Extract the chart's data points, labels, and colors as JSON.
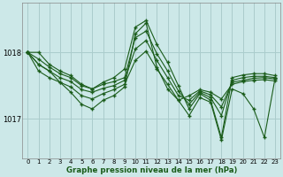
{
  "background_color": "#cce8e8",
  "grid_color": "#aacccc",
  "line_color": "#1a5c1a",
  "title": "Graphe pression niveau de la mer (hPa)",
  "ylim": [
    1016.4,
    1018.75
  ],
  "xlim": [
    -0.5,
    23.5
  ],
  "yticks": [
    1017,
    1018
  ],
  "xticks": [
    0,
    1,
    2,
    3,
    4,
    5,
    6,
    7,
    8,
    9,
    10,
    11,
    12,
    13,
    14,
    15,
    16,
    17,
    18,
    19,
    20,
    21,
    22,
    23
  ],
  "series": [
    [
      1018.0,
      1018.0,
      1017.82,
      1017.72,
      1017.65,
      1017.52,
      1017.45,
      1017.55,
      1017.62,
      1017.75,
      1018.38,
      1018.48,
      1018.12,
      1017.85,
      1017.5,
      1017.15,
      1017.38,
      1017.28,
      1016.72,
      1017.62,
      1017.66,
      1017.68,
      1017.68,
      1017.65
    ],
    [
      1018.0,
      1017.9,
      1017.78,
      1017.68,
      1017.62,
      1017.5,
      1017.45,
      1017.52,
      1017.56,
      1017.62,
      1018.22,
      1018.32,
      1017.98,
      1017.72,
      1017.42,
      1017.22,
      1017.4,
      1017.32,
      1017.05,
      1017.58,
      1017.62,
      1017.64,
      1017.64,
      1017.62
    ],
    [
      1018.0,
      1017.82,
      1017.72,
      1017.62,
      1017.56,
      1017.44,
      1017.4,
      1017.46,
      1017.5,
      1017.58,
      1018.05,
      1018.18,
      1017.88,
      1017.62,
      1017.35,
      1017.28,
      1017.42,
      1017.36,
      1017.18,
      1017.55,
      1017.58,
      1017.61,
      1017.62,
      1017.6
    ],
    [
      1018.0,
      1017.72,
      1017.62,
      1017.55,
      1017.48,
      1017.35,
      1017.3,
      1017.38,
      1017.44,
      1017.52,
      1017.88,
      1018.02,
      1017.75,
      1017.52,
      1017.28,
      1017.35,
      1017.44,
      1017.4,
      1017.3,
      1017.52,
      1017.56,
      1017.58,
      1017.59,
      1017.57
    ]
  ],
  "series_volatile": [
    1018.0,
    1017.82,
    1017.72,
    1017.55,
    1017.4,
    1017.22,
    1017.15,
    1017.28,
    1017.35,
    1017.48,
    1018.28,
    1018.44,
    1017.78,
    1017.45,
    1017.28,
    1017.05,
    1017.32,
    1017.25,
    1016.68,
    1017.45,
    1017.38,
    1017.15,
    1016.72,
    1017.62
  ]
}
